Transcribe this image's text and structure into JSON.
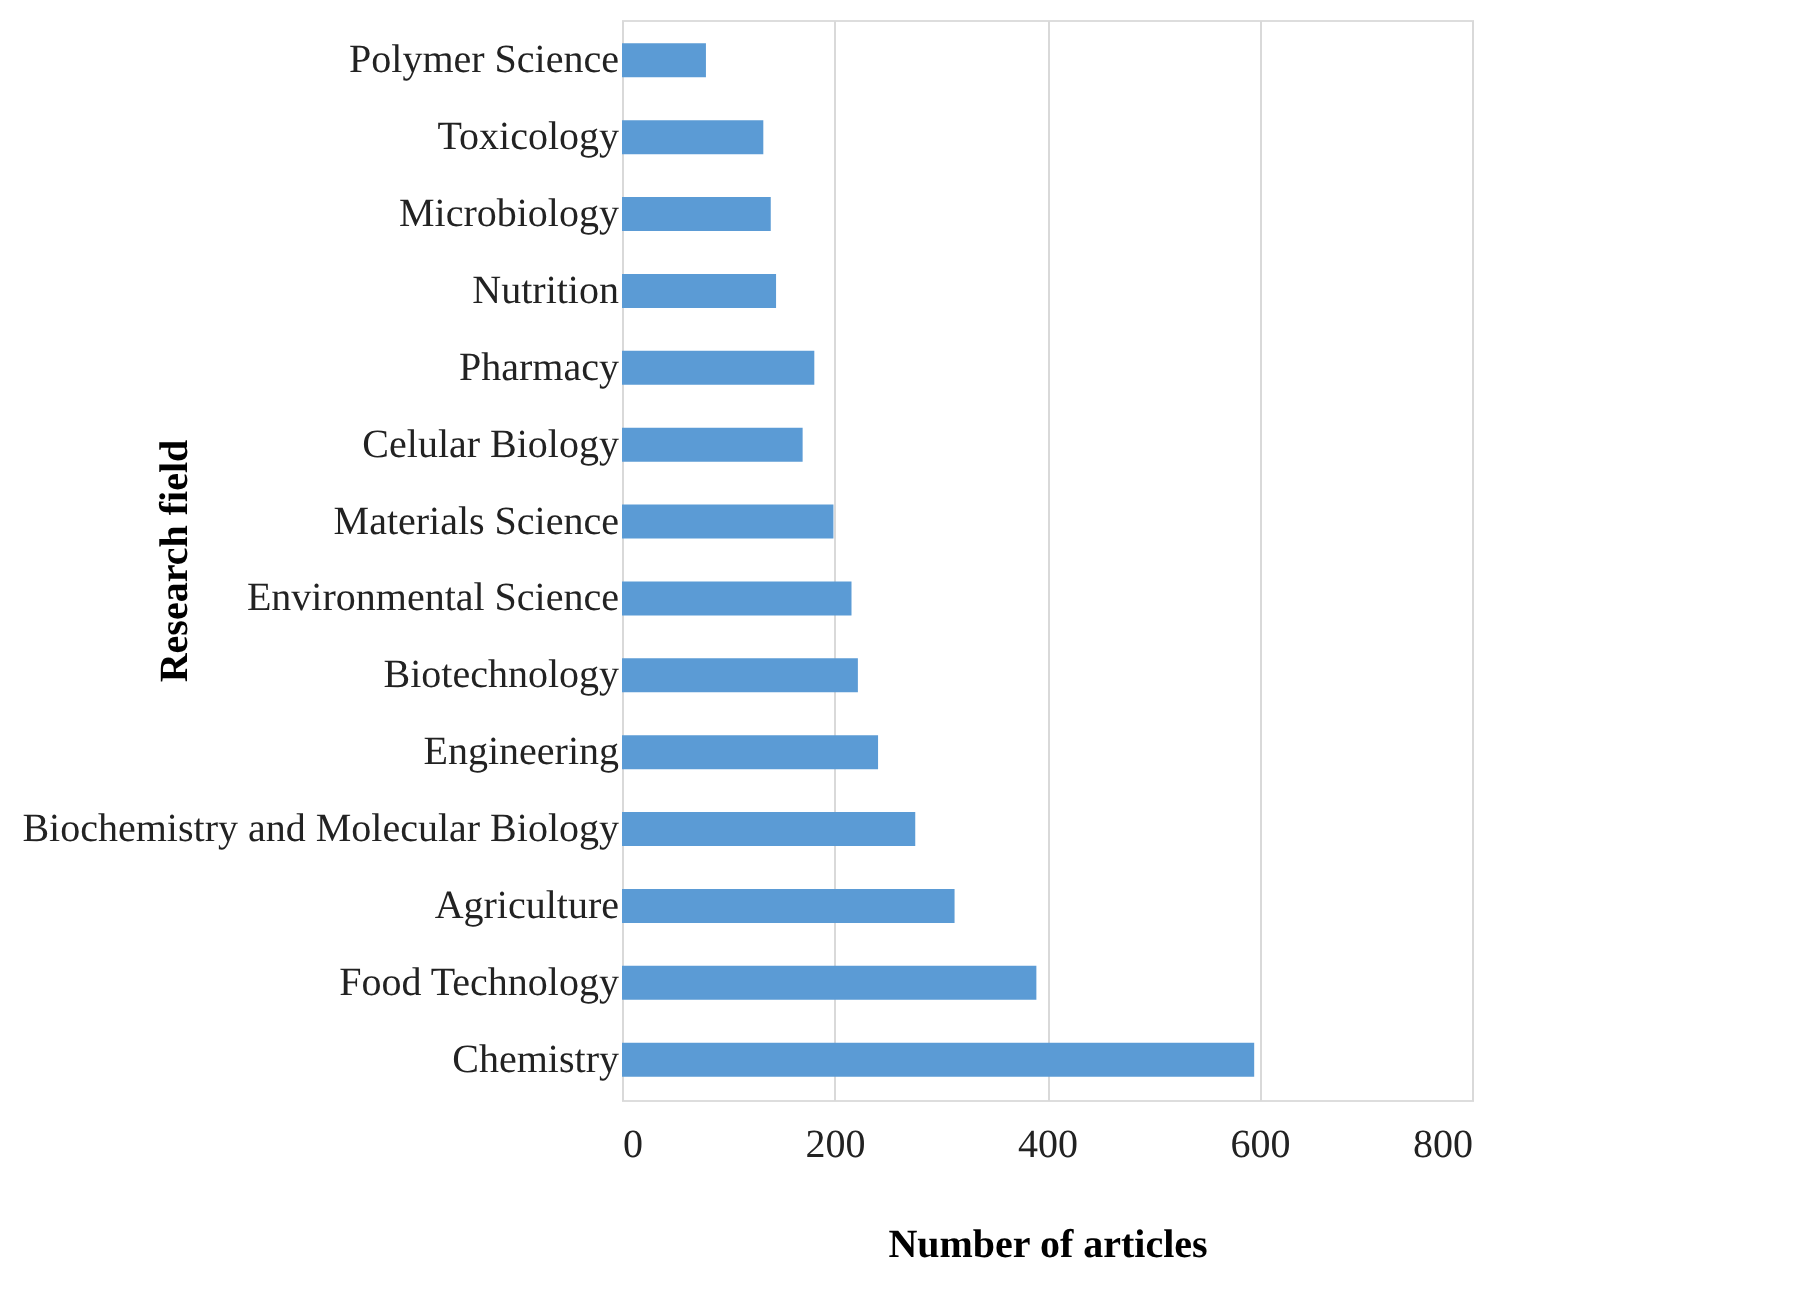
{
  "chart_data": {
    "type": "bar",
    "orientation": "horizontal",
    "xlabel": "Number of articles",
    "ylabel": "Research field",
    "categories": [
      "Polymer Science",
      "Toxicology",
      "Microbiology",
      "Nutrition",
      "Pharmacy",
      "Celular Biology",
      "Materials Science",
      "Environmental Science",
      "Biotechnology",
      "Engineering",
      "Biochemistry and Molecular Biology",
      "Agriculture",
      "Food Technology",
      "Chemistry"
    ],
    "values": [
      79,
      133,
      140,
      145,
      181,
      170,
      199,
      216,
      222,
      241,
      276,
      313,
      390,
      595
    ],
    "color": "#5b9bd5",
    "xlim": [
      0,
      800
    ],
    "xticks": [
      0,
      200,
      400,
      600,
      800
    ],
    "grid": "x"
  }
}
